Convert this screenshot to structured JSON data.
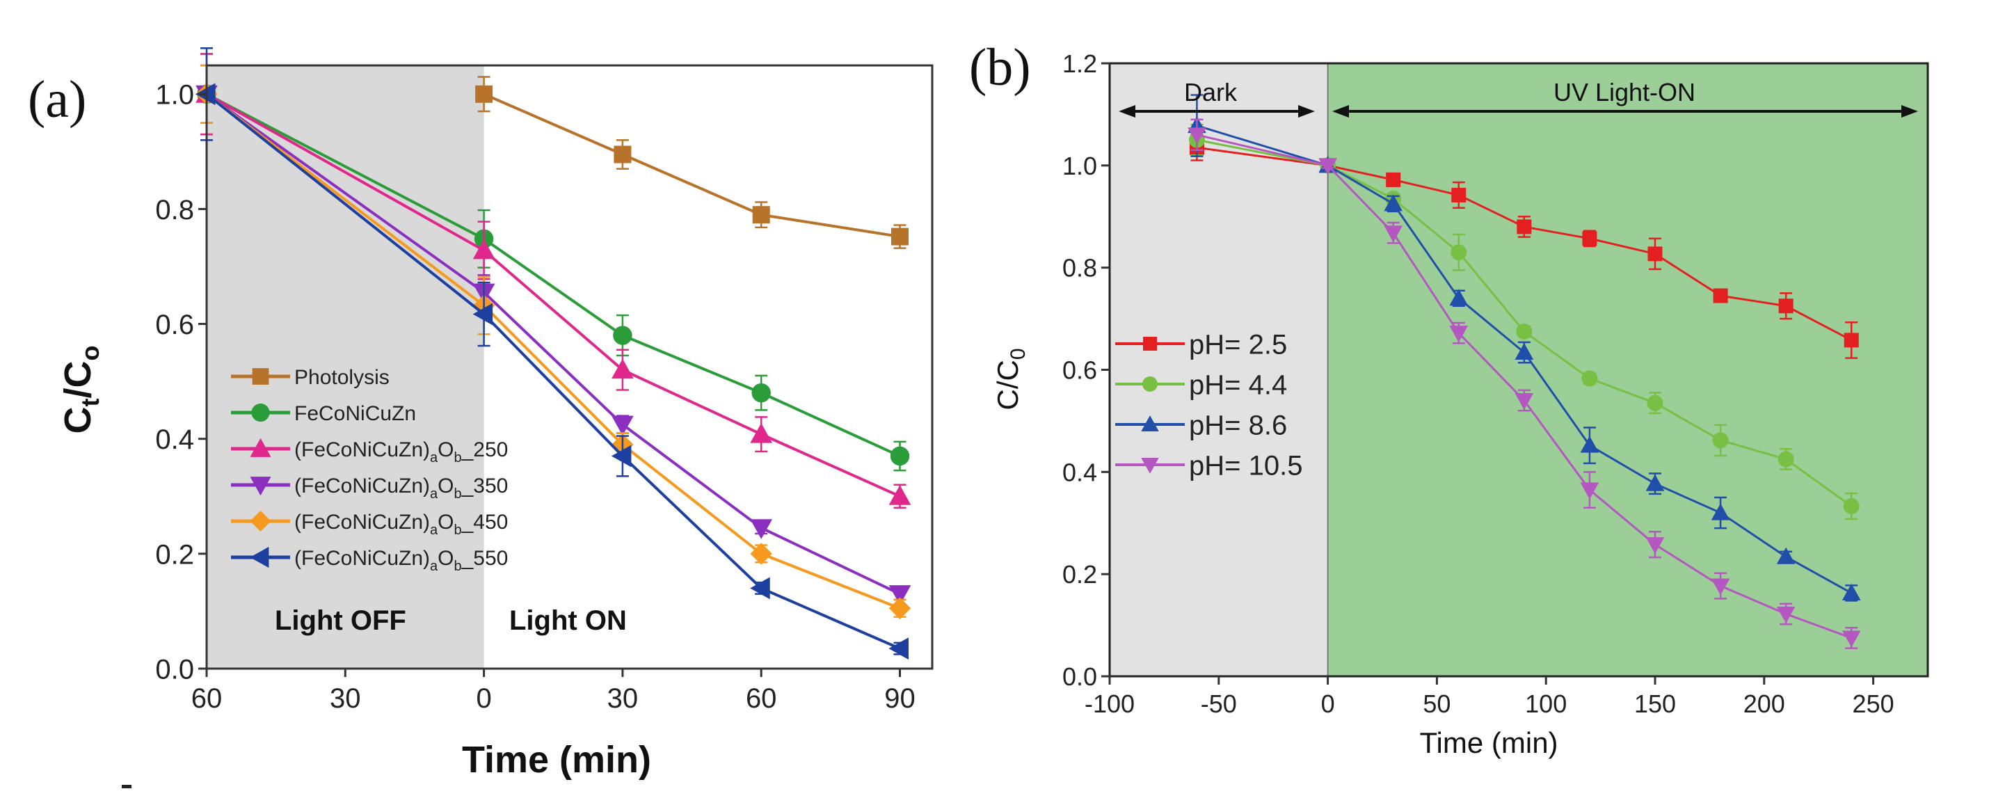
{
  "chart_data": [
    {
      "panel_label": "(a)",
      "type": "line",
      "xlabel": "Time (min)",
      "ylabel": {
        "main1": "C",
        "sub1": "t",
        "main2": "/C",
        "sub2": "o"
      },
      "xlim": [
        -60,
        97
      ],
      "ylim": [
        0,
        1.05
      ],
      "xticks": [
        -60,
        -30,
        0,
        30,
        60,
        90
      ],
      "xtick_labels": [
        "60",
        "30",
        "0",
        "30",
        "60",
        "90"
      ],
      "yticks": [
        0,
        0.2,
        0.4,
        0.6,
        0.8,
        1.0
      ],
      "ytick_labels": [
        "0.0",
        "0.2",
        "0.4",
        "0.6",
        "0.8",
        "1.0"
      ],
      "grid": false,
      "legend": "center-left",
      "shaded_region": {
        "from": -60,
        "to": 0,
        "color": "#d9d9d9"
      },
      "annotations": [
        "Light OFF",
        "Light ON"
      ],
      "series": [
        {
          "name": "Photolysis",
          "marker": "square",
          "color": "#b8732a",
          "x": [
            0,
            30,
            60,
            90
          ],
          "y": [
            1.0,
            0.895,
            0.79,
            0.752
          ],
          "err": [
            0.03,
            0.025,
            0.022,
            0.02
          ]
        },
        {
          "name": "FeCoNiCuZn",
          "marker": "circle",
          "color": "#2a9d3a",
          "x": [
            -60,
            0,
            30,
            60,
            90
          ],
          "y": [
            1.0,
            0.748,
            0.58,
            0.48,
            0.37
          ],
          "err": [
            0.07,
            0.05,
            0.035,
            0.03,
            0.025
          ]
        },
        {
          "name": "(FeCoNiCuZn)aOb_250",
          "marker": "triangle-up",
          "color": "#e0288c",
          "x": [
            -60,
            0,
            30,
            60,
            90
          ],
          "y": [
            1.0,
            0.728,
            0.52,
            0.408,
            0.3
          ],
          "err": [
            0.07,
            0.05,
            0.035,
            0.03,
            0.02
          ]
        },
        {
          "name": "(FeCoNiCuZn)aOb_350",
          "marker": "triangle-down",
          "color": "#8b2fc0",
          "x": [
            -60,
            0,
            30,
            60,
            90
          ],
          "y": [
            1.0,
            0.655,
            0.425,
            0.245,
            0.13
          ],
          "err": [
            0.05,
            0.03,
            0.015,
            0.01,
            0.01
          ]
        },
        {
          "name": "(FeCoNiCuZn)aOb_450",
          "marker": "diamond",
          "color": "#f59a1f",
          "x": [
            -60,
            0,
            30,
            60,
            90
          ],
          "y": [
            1.0,
            0.632,
            0.39,
            0.2,
            0.105
          ],
          "err": [
            0.05,
            0.05,
            0.02,
            0.015,
            0.015
          ]
        },
        {
          "name": "(FeCoNiCuZn)aOb_550",
          "marker": "triangle-left",
          "color": "#1c3fa0",
          "x": [
            -60,
            0,
            30,
            60,
            90
          ],
          "y": [
            1.0,
            0.617,
            0.37,
            0.14,
            0.035
          ],
          "err": [
            0.08,
            0.055,
            0.035,
            0.01,
            0.01
          ]
        }
      ]
    },
    {
      "panel_label": "(b)",
      "type": "line",
      "xlabel": "Time (min)",
      "ylabel": {
        "main1": "C/C",
        "sub1": "0"
      },
      "xlim": [
        -100,
        275
      ],
      "ylim": [
        0,
        1.2
      ],
      "xticks": [
        -100,
        -50,
        0,
        50,
        100,
        150,
        200,
        250
      ],
      "xtick_labels": [
        "-100",
        "-50",
        "0",
        "50",
        "100",
        "150",
        "200",
        "250"
      ],
      "yticks": [
        0,
        0.2,
        0.4,
        0.6,
        0.8,
        1.0,
        1.2
      ],
      "ytick_labels": [
        "0.0",
        "0.2",
        "0.4",
        "0.6",
        "0.8",
        "1.0",
        "1.2"
      ],
      "grid": false,
      "legend": "center-left",
      "shaded_regions": [
        {
          "from": -100,
          "to": 0,
          "color": "#e2e2e2"
        },
        {
          "from": 0,
          "to": 275,
          "color": "#9ccf98"
        }
      ],
      "annotations": [
        "Dark",
        "UV Light-ON"
      ],
      "series": [
        {
          "name": "pH= 2.5",
          "marker": "square",
          "color": "#e41f1f",
          "x": [
            -60,
            0,
            30,
            60,
            90,
            120,
            150,
            180,
            210,
            240
          ],
          "y": [
            1.035,
            1.0,
            0.972,
            0.942,
            0.88,
            0.857,
            0.827,
            0.745,
            0.725,
            0.658
          ],
          "err": [
            0.025,
            0.005,
            0.01,
            0.025,
            0.02,
            0.015,
            0.03,
            0.01,
            0.025,
            0.035
          ]
        },
        {
          "name": "pH= 4.4",
          "marker": "circle",
          "color": "#77c043",
          "x": [
            -60,
            0,
            30,
            60,
            90,
            120,
            150,
            180,
            210,
            240
          ],
          "y": [
            1.05,
            1.0,
            0.935,
            0.83,
            0.675,
            0.583,
            0.535,
            0.462,
            0.425,
            0.333
          ],
          "err": [
            0.03,
            0.005,
            0.01,
            0.035,
            0.01,
            0.01,
            0.02,
            0.03,
            0.02,
            0.025
          ]
        },
        {
          "name": "pH= 8.6",
          "marker": "triangle-up",
          "color": "#1f4fa8",
          "x": [
            -60,
            0,
            30,
            60,
            90,
            120,
            150,
            180,
            210,
            240
          ],
          "y": [
            1.078,
            1.0,
            0.925,
            0.74,
            0.634,
            0.452,
            0.377,
            0.32,
            0.234,
            0.163
          ],
          "err": [
            0.06,
            0.005,
            0.015,
            0.015,
            0.02,
            0.035,
            0.02,
            0.03,
            0.01,
            0.015
          ]
        },
        {
          "name": "pH= 10.5",
          "marker": "triangle-down",
          "color": "#b457c0",
          "x": [
            -60,
            0,
            30,
            60,
            90,
            120,
            150,
            180,
            210,
            240
          ],
          "y": [
            1.06,
            1.0,
            0.868,
            0.672,
            0.54,
            0.365,
            0.258,
            0.177,
            0.122,
            0.075
          ],
          "err": [
            0.03,
            0.005,
            0.02,
            0.02,
            0.02,
            0.035,
            0.025,
            0.025,
            0.02,
            0.02
          ]
        }
      ]
    }
  ]
}
